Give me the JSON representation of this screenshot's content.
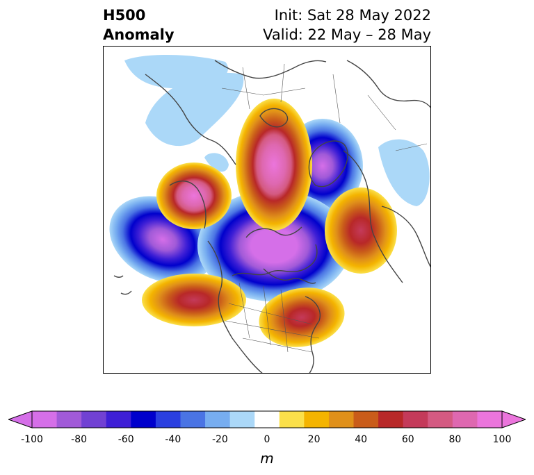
{
  "title": {
    "left_line1": "H500",
    "left_line2": "Anomaly",
    "right_line1": "Init: Sat 28 May 2022",
    "right_line2": "Valid: 22 May – 28 May"
  },
  "map": {
    "anomaly_centers": [
      {
        "sign": "negative",
        "magnitude": 100,
        "region": "northern Canada / Hudson Bay area"
      },
      {
        "sign": "negative",
        "magnitude": 90,
        "region": "North Pacific near Aleutians"
      },
      {
        "sign": "negative",
        "magnitude": 80,
        "region": "Siberia / East Asia"
      },
      {
        "sign": "positive",
        "magnitude": 90,
        "region": "Alaska / Bering region"
      },
      {
        "sign": "positive",
        "magnitude": 90,
        "region": "Arctic Ocean / Siberian coast"
      },
      {
        "sign": "positive",
        "magnitude": 70,
        "region": "Greenland / North Atlantic"
      },
      {
        "sign": "positive",
        "magnitude": 70,
        "region": "Northeast Pacific off US West Coast"
      },
      {
        "sign": "positive",
        "magnitude": 70,
        "region": "Eastern United States"
      }
    ]
  },
  "colorbar": {
    "levels": [
      -100,
      -90,
      -80,
      -70,
      -60,
      -50,
      -40,
      -30,
      -20,
      -10,
      10,
      20,
      30,
      40,
      50,
      60,
      70,
      80,
      90,
      100
    ],
    "colors": [
      "#d56fe8",
      "#a15ad8",
      "#7141d3",
      "#3e1fd6",
      "#0000cc",
      "#2a3fe0",
      "#4a74e4",
      "#77adf0",
      "#abd8f8",
      "#ffffff",
      "#fbe04a",
      "#f4b400",
      "#e0901a",
      "#c95c1a",
      "#b82828",
      "#c43a5a",
      "#d45a82",
      "#de68b0",
      "#eb75dc"
    ],
    "extend_low_color": "#d56fe8",
    "extend_high_color": "#eb75dc",
    "tick_labels": [
      "-100",
      "-80",
      "-60",
      "-40",
      "-20",
      "0",
      "20",
      "40",
      "60",
      "80",
      "100"
    ],
    "unit": "m"
  }
}
